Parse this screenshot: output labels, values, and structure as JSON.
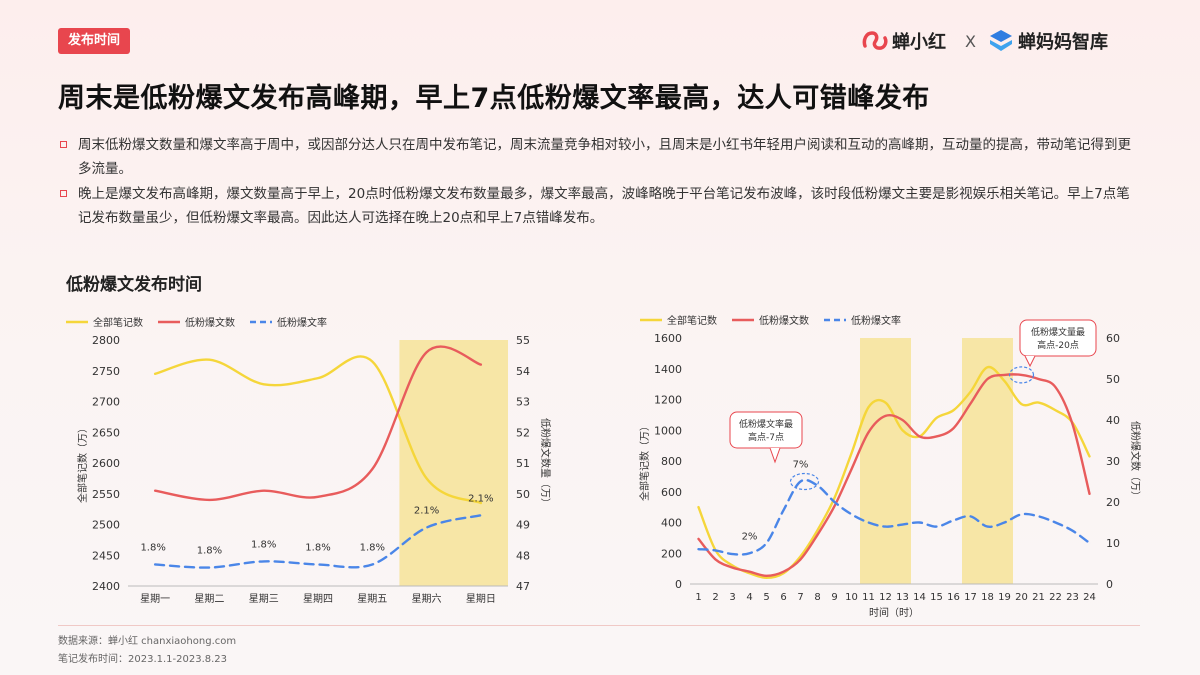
{
  "badge": "发布时间",
  "logos": {
    "a": "蝉小红",
    "x": "X",
    "b": "蝉妈妈智库"
  },
  "headline": "周末是低粉爆文发布高峰期，早上7点低粉爆文率最高，达人可错峰发布",
  "bullets": [
    "周末低粉爆文数量和爆文率高于周中，或因部分达人只在周中发布笔记，周末流量竞争相对较小，且周末是小红书年轻用户阅读和互动的高峰期，互动量的提高，带动笔记得到更多流量。",
    "晚上是爆文发布高峰期，爆文数量高于早上，20点时低粉爆文发布数量最多，爆文率最高，波峰略晚于平台笔记发布波峰，该时段低粉爆文主要是影视娱乐相关笔记。早上7点笔记发布数量虽少，但低粉爆文率最高。因此达人可选择在晚上20点和早上7点错峰发布。"
  ],
  "section_title": "低粉爆文发布时间",
  "footer": {
    "source": "数据来源：蝉小红 chanxiaohong.com",
    "period": "笔记发布时间：2023.1.1-2023.8.23"
  },
  "colors": {
    "yellow": "#f5d63a",
    "red": "#e85c5c",
    "blue": "#4a86e8",
    "highlight": "#f7e6a6",
    "accent": "#e8464e"
  },
  "chart_data": [
    {
      "type": "line",
      "legend": [
        "全部笔记数",
        "低粉爆文数",
        "低粉爆文率"
      ],
      "legend_position": "top-left",
      "categories": [
        "星期一",
        "星期二",
        "星期三",
        "星期四",
        "星期五",
        "星期六",
        "星期日"
      ],
      "ylabel_left": "全部笔记数（万）",
      "ylabel_right": "低粉爆文数量（万）",
      "ylim_left": [
        2400,
        2800
      ],
      "yticks_left": [
        2400,
        2450,
        2500,
        2550,
        2600,
        2650,
        2700,
        2750,
        2800
      ],
      "ylim_right": [
        47,
        55
      ],
      "yticks_right": [
        47,
        48,
        49,
        50,
        51,
        52,
        53,
        54,
        55
      ],
      "highlight_categories": [
        "星期六",
        "星期日"
      ],
      "series": [
        {
          "name": "全部笔记数",
          "axis": "left",
          "values": [
            2745,
            2768,
            2728,
            2738,
            2765,
            2575,
            2535
          ]
        },
        {
          "name": "低粉爆文数",
          "axis": "right",
          "values": [
            50.1,
            49.8,
            50.1,
            49.9,
            50.8,
            54.6,
            54.2
          ]
        },
        {
          "name": "低粉爆文率",
          "axis": "right",
          "dashed": true,
          "values": [
            47.7,
            47.6,
            47.8,
            47.7,
            47.7,
            48.9,
            49.3
          ]
        }
      ],
      "rate_labels": [
        "1.8%",
        "1.8%",
        "1.8%",
        "1.8%",
        "1.8%",
        "2.1%",
        "2.1%"
      ]
    },
    {
      "type": "line",
      "legend": [
        "全部笔记数",
        "低粉爆文数",
        "低粉爆文率"
      ],
      "legend_position": "top-left",
      "categories": [
        "1",
        "2",
        "3",
        "4",
        "5",
        "6",
        "7",
        "8",
        "9",
        "10",
        "11",
        "12",
        "13",
        "14",
        "15",
        "16",
        "17",
        "18",
        "19",
        "20",
        "21",
        "22",
        "23",
        "24"
      ],
      "xlabel": "时间（时）",
      "ylabel_left": "全部笔记数（万）",
      "ylabel_right": "低粉爆文数（万）",
      "ylim_left": [
        0,
        1600
      ],
      "yticks_left": [
        0,
        200,
        400,
        600,
        800,
        1000,
        1200,
        1400,
        1600
      ],
      "ylim_right": [
        0,
        60
      ],
      "yticks_right": [
        0,
        10,
        20,
        30,
        40,
        50,
        60
      ],
      "highlight_ranges": [
        [
          "11",
          "13"
        ],
        [
          "17",
          "19"
        ]
      ],
      "series": [
        {
          "name": "全部笔记数",
          "axis": "left",
          "values": [
            500,
            220,
            120,
            70,
            40,
            70,
            180,
            350,
            560,
            850,
            1150,
            1180,
            1000,
            960,
            1080,
            1130,
            1250,
            1410,
            1320,
            1170,
            1180,
            1130,
            1050,
            830
          ]
        },
        {
          "name": "低粉爆文数",
          "axis": "right",
          "values": [
            11,
            6,
            4,
            3,
            2,
            3,
            6,
            12,
            19,
            28,
            37,
            41,
            40,
            36,
            36,
            38,
            44,
            50,
            51,
            51,
            50,
            48,
            39,
            22
          ]
        },
        {
          "name": "低粉爆文率",
          "axis": "right",
          "dashed": true,
          "values": [
            8.5,
            8.2,
            7.3,
            7.5,
            10,
            18,
            25,
            24,
            20,
            17,
            15,
            14,
            14.5,
            15,
            14,
            15.5,
            16.5,
            14,
            15,
            17,
            16.5,
            15,
            13,
            10
          ]
        }
      ],
      "annotations": [
        {
          "x": "4",
          "label": "2%"
        },
        {
          "x": "7",
          "label": "7%"
        }
      ],
      "callouts": [
        {
          "text": "低粉爆文率最高点-7点"
        },
        {
          "text": "低粉爆文量最高点-20点"
        }
      ]
    }
  ]
}
